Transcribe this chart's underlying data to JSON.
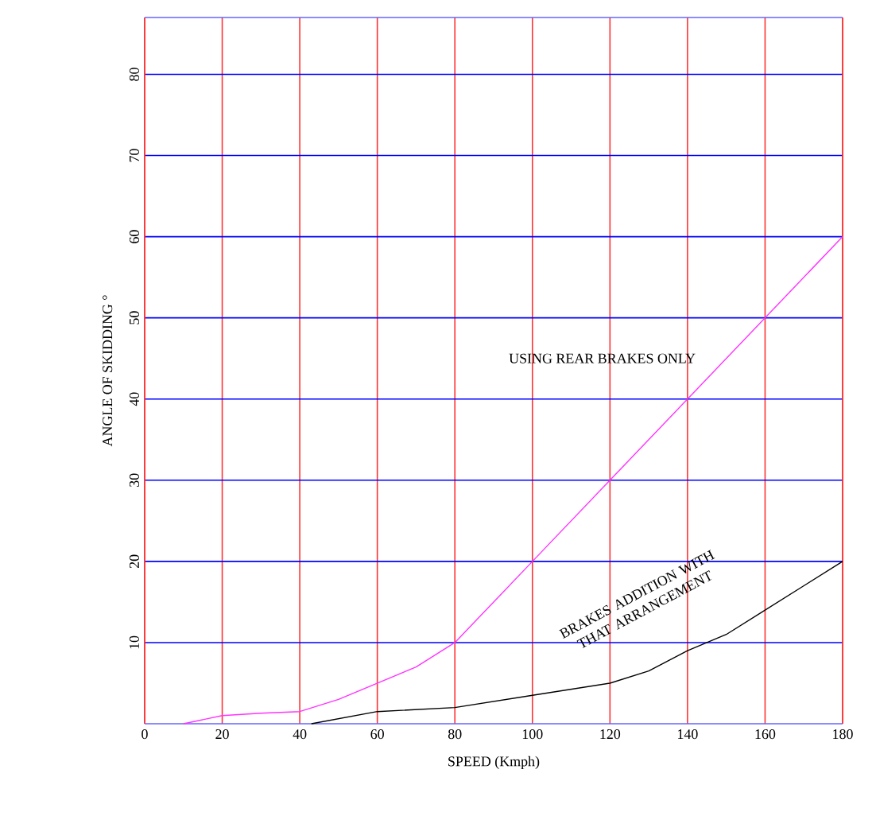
{
  "chart_data": {
    "type": "line",
    "xlabel": "SPEED (Kmph)",
    "ylabel": "ANGLE OF SKIDDING °",
    "xlim": [
      0,
      180
    ],
    "ylim": [
      0,
      87
    ],
    "xticks": [
      0,
      20,
      40,
      60,
      80,
      100,
      120,
      140,
      160,
      180
    ],
    "yticks": [
      10,
      20,
      30,
      40,
      50,
      60,
      70,
      80
    ],
    "grid": true,
    "legend": false,
    "marker": "none",
    "line_style": "solid",
    "series": [
      {
        "name": "USING REAR BRAKES ONLY",
        "color": "#ff33ff",
        "x": [
          10,
          20,
          30,
          40,
          50,
          60,
          70,
          80,
          90,
          100,
          120,
          140,
          160,
          180
        ],
        "values": [
          0,
          1,
          1.3,
          1.5,
          3,
          5,
          7,
          10,
          15,
          20,
          30,
          40,
          50,
          60
        ]
      },
      {
        "name": "BRAKES ADDITION WITH THAT ARRANGEMENT",
        "color": "#000000",
        "x": [
          43,
          60,
          80,
          100,
          120,
          130,
          140,
          150,
          160,
          170,
          180
        ],
        "values": [
          0,
          1.5,
          2,
          3.5,
          5,
          6.5,
          9,
          11,
          14,
          17,
          20
        ]
      }
    ]
  }
}
